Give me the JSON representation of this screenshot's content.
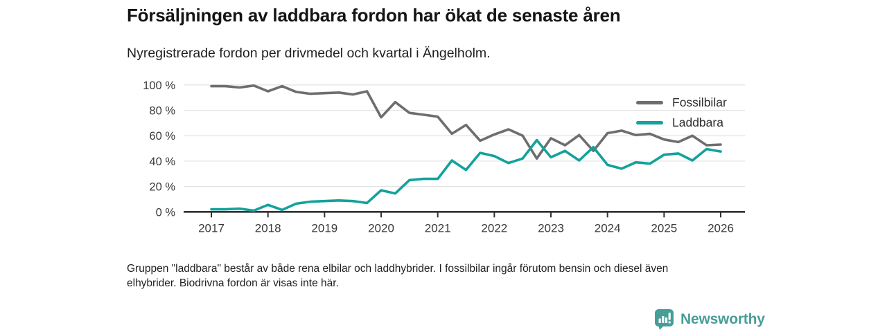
{
  "title": "Försäljningen av laddbara fordon har ökat de senaste åren",
  "subtitle": "Nyregistrerade fordon per drivmedel och kvartal i Ängelholm.",
  "footnote": {
    "line1": "Gruppen \"laddbara\" består av både rena elbilar och laddhybrider. I fossilbilar ingår förutom bensin och diesel även",
    "line2": "elhybrider. Biodrivna fordon är visas inte här."
  },
  "logo": {
    "text": "Newsworthy",
    "icon": "newsworthy-bubble-barchart-icon",
    "color": "#479d97"
  },
  "colors": {
    "grid": "#e4e4e4",
    "axis": "#333333",
    "tick_text": "#3a3a3a",
    "title_text": "#141414"
  },
  "chart_data": {
    "type": "line",
    "title": "Försäljningen av laddbara fordon har ökat de senaste åren",
    "subtitle": "Nyregistrerade fordon per drivmedel och kvartal i Ängelholm.",
    "x_unit": "quarter",
    "x_start_year": 2017,
    "points_per_year": 4,
    "x_ticks": [
      "2017",
      "2018",
      "2019",
      "2020",
      "2021",
      "2022",
      "2023",
      "2024",
      "2025",
      "2026"
    ],
    "y_ticks": [
      "0 %",
      "20 %",
      "40 %",
      "60 %",
      "80 %",
      "100 %"
    ],
    "y_tick_values": [
      0,
      20,
      40,
      60,
      80,
      100
    ],
    "ylim": [
      0,
      100
    ],
    "grid": "horizontal",
    "legend_position": "top-right",
    "series": [
      {
        "name": "Fossilbilar",
        "color": "#6e6e6e",
        "values": [
          99,
          99,
          98,
          99.5,
          95,
          99,
          94.5,
          93,
          93.5,
          94,
          92.5,
          95,
          74.5,
          86.5,
          78,
          76.5,
          75,
          61.5,
          68.5,
          56,
          61,
          65,
          60,
          42,
          58,
          52.5,
          60.5,
          48,
          62,
          64,
          60.5,
          61.5,
          57,
          55,
          60,
          52.5,
          53
        ]
      },
      {
        "name": "Laddbara",
        "color": "#13a29b",
        "values": [
          2,
          2,
          2.5,
          1,
          5.5,
          1.5,
          6.5,
          8,
          8.5,
          9,
          8.5,
          7,
          17,
          14.5,
          25,
          26,
          26,
          40.5,
          33,
          46.5,
          44,
          38.5,
          42,
          56.5,
          43,
          48,
          40.5,
          51,
          37,
          34,
          39,
          38,
          45,
          46,
          40.5,
          49.5,
          47.5
        ]
      }
    ]
  }
}
